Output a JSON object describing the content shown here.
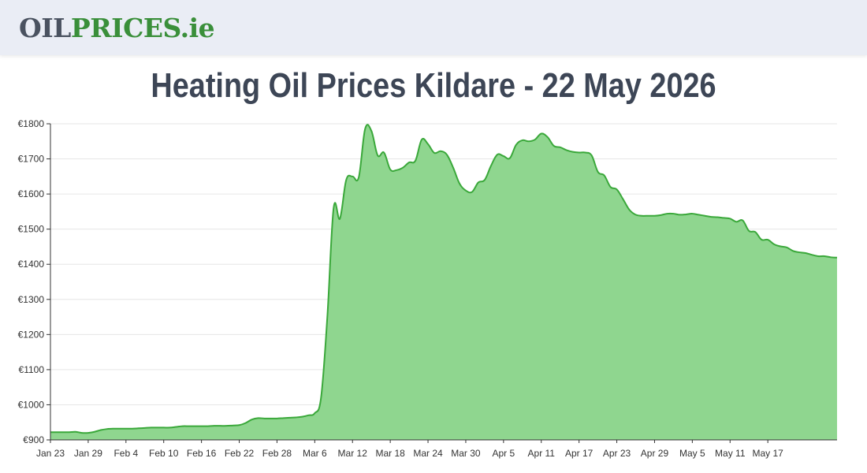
{
  "header": {
    "logo_part1": "OIL",
    "logo_part2": "PRICES",
    "logo_part3": ".ie"
  },
  "page": {
    "title": "Heating Oil Prices Kildare - 22 May 2026"
  },
  "colors": {
    "area_fill": "#8fd68f",
    "line": "#3aa83a",
    "grid": "#e6e6e6",
    "axis": "#333333",
    "header_bg": "#eaedf5"
  },
  "chart_data": {
    "type": "area",
    "title": "",
    "xlabel": "",
    "ylabel": "",
    "ylim": [
      900,
      1800
    ],
    "yticks": [
      "€900",
      "€1000",
      "€1100",
      "€1200",
      "€1300",
      "€1400",
      "€1500",
      "€1600",
      "€1700",
      "€1800"
    ],
    "xticks": [
      "Jan 23",
      "Jan 29",
      "Feb 4",
      "Feb 10",
      "Feb 16",
      "Feb 22",
      "Feb 28",
      "Mar 6",
      "Mar 12",
      "Mar 18",
      "Mar 24",
      "Mar 30",
      "Apr 5",
      "Apr 11",
      "Apr 17",
      "Apr 23",
      "Apr 29",
      "May 5",
      "May 11",
      "May 17"
    ],
    "grid": true,
    "legend": "none",
    "series": [
      {
        "values": [
          922,
          922,
          922,
          922,
          923,
          920,
          920,
          923,
          928,
          931,
          932,
          932,
          932,
          932,
          933,
          934,
          935,
          935,
          935,
          935,
          937,
          939,
          939,
          939,
          939,
          939,
          940,
          940,
          940,
          941,
          942,
          948,
          958,
          962,
          961,
          961,
          961,
          962,
          963,
          964,
          966,
          970,
          976,
          1020,
          1250,
          1560,
          1530,
          1640,
          1650,
          1648,
          1785,
          1780,
          1710,
          1718,
          1670,
          1668,
          1675,
          1690,
          1695,
          1755,
          1742,
          1717,
          1722,
          1712,
          1675,
          1630,
          1610,
          1606,
          1633,
          1640,
          1680,
          1712,
          1708,
          1702,
          1740,
          1753,
          1750,
          1755,
          1772,
          1762,
          1737,
          1733,
          1725,
          1720,
          1718,
          1718,
          1710,
          1663,
          1653,
          1620,
          1613,
          1585,
          1555,
          1541,
          1538,
          1538,
          1538,
          1540,
          1544,
          1544,
          1541,
          1542,
          1544,
          1541,
          1538,
          1535,
          1534,
          1532,
          1530,
          1521,
          1525,
          1495,
          1492,
          1470,
          1470,
          1457,
          1451,
          1448,
          1438,
          1434,
          1432,
          1427,
          1423,
          1423,
          1420,
          1419
        ]
      }
    ]
  }
}
